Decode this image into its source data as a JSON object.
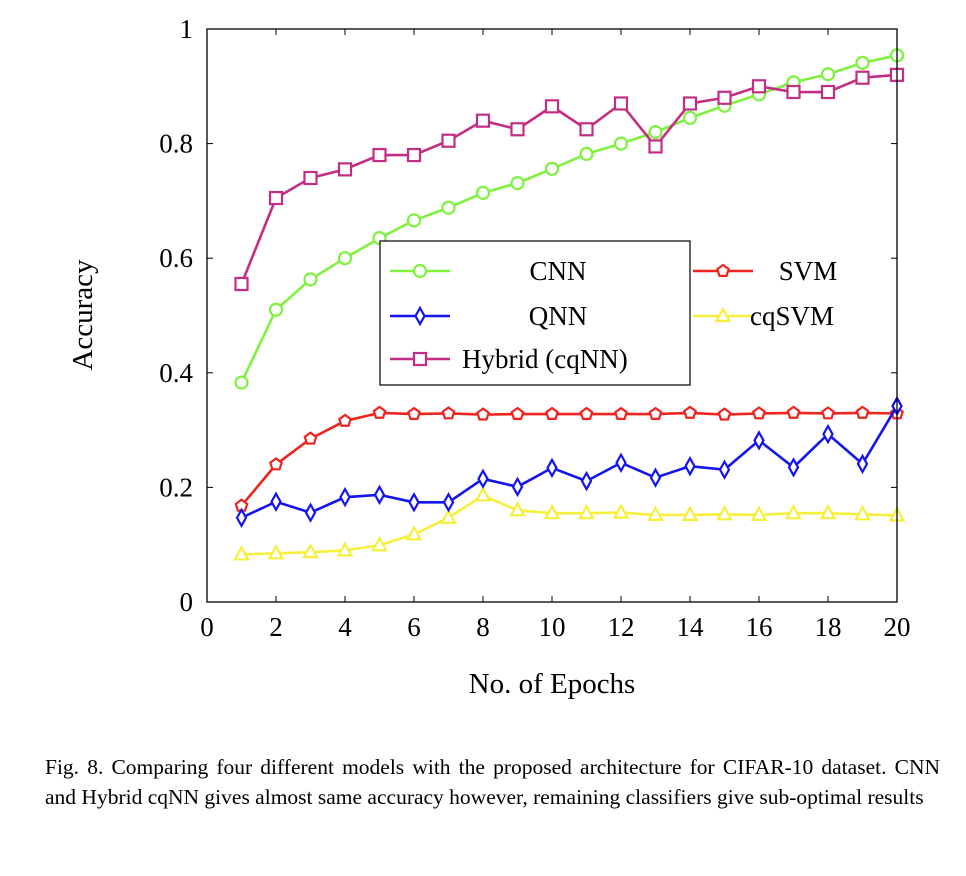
{
  "chart_data": {
    "type": "line",
    "title": "",
    "xlabel": "No. of Epochs",
    "ylabel": "Accuracy",
    "xlim": [
      0,
      20
    ],
    "ylim": [
      0,
      1
    ],
    "xticks": [
      0,
      2,
      4,
      6,
      8,
      10,
      12,
      14,
      16,
      18,
      20
    ],
    "xtick_labels": [
      "0",
      "2",
      "4",
      "6",
      "8",
      "10",
      "12",
      "14",
      "16",
      "18",
      "20"
    ],
    "yticks": [
      0,
      0.2,
      0.4,
      0.6,
      0.8,
      1
    ],
    "ytick_labels": [
      "0",
      "0.2",
      "0.4",
      "0.6",
      "0.8",
      "1"
    ],
    "grid": false,
    "legend_position": "center-right",
    "x": [
      1,
      2,
      3,
      4,
      5,
      6,
      7,
      8,
      9,
      10,
      11,
      12,
      13,
      14,
      15,
      16,
      17,
      18,
      19,
      20
    ],
    "series": [
      {
        "name": "CNN",
        "color": "#7ef23e",
        "marker": "circle",
        "values": [
          0.383,
          0.51,
          0.563,
          0.6,
          0.635,
          0.666,
          0.688,
          0.714,
          0.731,
          0.756,
          0.782,
          0.8,
          0.82,
          0.845,
          0.866,
          0.886,
          0.907,
          0.921,
          0.941,
          0.954
        ]
      },
      {
        "name": "SVM",
        "color": "#f0241e",
        "marker": "pentagon",
        "values": [
          0.168,
          0.24,
          0.285,
          0.316,
          0.33,
          0.328,
          0.329,
          0.327,
          0.328,
          0.328,
          0.328,
          0.328,
          0.328,
          0.33,
          0.327,
          0.329,
          0.33,
          0.329,
          0.33,
          0.329
        ]
      },
      {
        "name": "QNN",
        "color": "#1414f0",
        "marker": "diamond",
        "values": [
          0.147,
          0.175,
          0.156,
          0.183,
          0.187,
          0.174,
          0.174,
          0.215,
          0.201,
          0.234,
          0.211,
          0.243,
          0.217,
          0.237,
          0.231,
          0.282,
          0.235,
          0.293,
          0.241,
          0.342
        ]
      },
      {
        "name": "cqSVM",
        "color": "#f5f03c",
        "marker": "triangle",
        "values": [
          0.083,
          0.085,
          0.087,
          0.09,
          0.099,
          0.118,
          0.147,
          0.186,
          0.16,
          0.155,
          0.155,
          0.156,
          0.152,
          0.152,
          0.153,
          0.152,
          0.155,
          0.155,
          0.153,
          0.151
        ]
      },
      {
        "name": "Hybrid (cqNN)",
        "color": "#c42d84",
        "marker": "square",
        "values": [
          0.555,
          0.705,
          0.74,
          0.755,
          0.78,
          0.78,
          0.805,
          0.84,
          0.825,
          0.865,
          0.825,
          0.87,
          0.795,
          0.87,
          0.88,
          0.9,
          0.89,
          0.89,
          0.915,
          0.92
        ]
      }
    ]
  },
  "caption": "Fig. 8.  Comparing four different models with the proposed architecture for CIFAR-10 dataset. CNN and Hybrid cqNN gives almost same accuracy however, remaining classifiers give sub-optimal results"
}
